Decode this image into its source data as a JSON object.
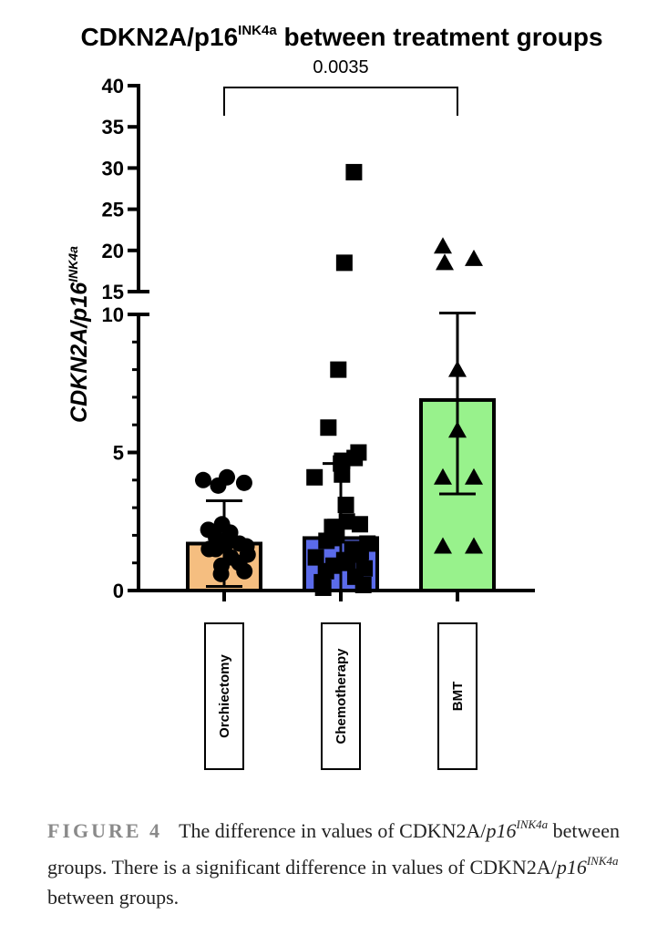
{
  "chart_data": {
    "type": "bar",
    "title": "CDKN2A/p16",
    "title_sup": "INK4a",
    "title_rest": " between treatment groups",
    "ylabel": "CDKN2A/p16",
    "ylabel_sup": "INK4a",
    "y_axis": {
      "segments": [
        {
          "range": [
            0,
            10
          ],
          "ticks": [
            "0",
            "5",
            "10"
          ]
        },
        {
          "range": [
            15,
            40
          ],
          "ticks": [
            "15",
            "20",
            "25",
            "30",
            "35",
            "40"
          ]
        }
      ],
      "axis_break": [
        10,
        15
      ]
    },
    "categories": [
      "Orchiectomy",
      "Chemotherapy",
      "BMT"
    ],
    "bars": [
      {
        "category": "Orchiectomy",
        "mean": 1.7,
        "sd": 1.55,
        "color": "#F5BE80",
        "marker": "circle",
        "points": [
          3.9,
          4.0,
          4.1,
          3.8,
          2.4,
          2.1,
          2.2,
          1.9,
          1.7,
          1.6,
          1.7,
          1.5,
          1.3,
          1.0,
          0.9,
          0.7,
          0.6,
          1.2,
          1.5
        ]
      },
      {
        "category": "Chemotherapy",
        "mean": 1.9,
        "sd": 2.7,
        "color": "#5B6BEA",
        "marker": "square",
        "points": [
          29.5,
          18.5,
          8.0,
          5.9,
          5.0,
          4.8,
          4.6,
          4.7,
          4.2,
          4.1,
          3.1,
          2.5,
          2.3,
          2.4,
          2.3,
          2.0,
          1.8,
          1.7,
          1.5,
          1.4,
          1.3,
          1.2,
          1.0,
          0.8,
          0.7,
          0.5,
          0.3,
          0.2,
          0.1,
          1.9,
          1.1,
          0.9
        ]
      },
      {
        "category": "BMT",
        "mean": 6.9,
        "sd": 3.4,
        "color": "#98F28C",
        "marker": "triangle",
        "points": [
          20.5,
          18.5,
          19.0,
          8.0,
          5.8,
          4.1,
          4.1,
          1.6,
          1.6
        ]
      }
    ],
    "annotation": {
      "from": "Orchiectomy",
      "to": "BMT",
      "text": "0.0035"
    }
  },
  "caption": {
    "label": "FIGURE 4",
    "p1": "The difference in values of CDKN2A/",
    "ital1": "p16",
    "sup1": "INK4a",
    "p2": " between groups. There is a significant difference in values of CDKN2A/",
    "ital2": "p16",
    "sup2": "INK4a",
    "p3": " between groups."
  }
}
